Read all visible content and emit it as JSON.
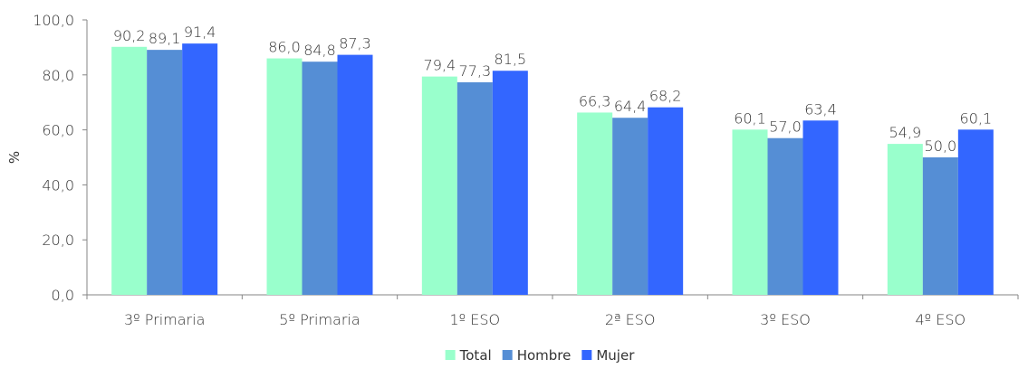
{
  "chart_data": {
    "type": "bar",
    "categories": [
      "3º Primaria",
      "5º Primaria",
      "1º ESO",
      "2ª ESO",
      "3º ESO",
      "4º ESO"
    ],
    "series": [
      {
        "name": "Total",
        "color": "#99ffcc",
        "values": [
          90.2,
          86.0,
          79.4,
          66.3,
          60.1,
          54.9
        ],
        "labels": [
          "90,2",
          "86,0",
          "79,4",
          "66,3",
          "60,1",
          "54,9"
        ]
      },
      {
        "name": "Hombre",
        "color": "#558ed5",
        "values": [
          89.1,
          84.8,
          77.3,
          64.4,
          57.0,
          50.0
        ],
        "labels": [
          "89,1",
          "84,8",
          "77,3",
          "64,4",
          "57,0",
          "50,0"
        ]
      },
      {
        "name": "Mujer",
        "color": "#3366ff",
        "values": [
          91.4,
          87.3,
          81.5,
          68.2,
          63.4,
          60.1
        ],
        "labels": [
          "91,4",
          "87,3",
          "81,5",
          "68,2",
          "63,4",
          "60,1"
        ]
      }
    ],
    "ylabel": "%",
    "xlabel": "",
    "ylim": [
      0,
      100
    ],
    "yticks": [
      0,
      20,
      40,
      60,
      80,
      100
    ],
    "ytick_labels": [
      "0,0",
      "20,0",
      "40,0",
      "60,0",
      "80,0",
      "100,0"
    ],
    "grid": false,
    "legend": "bottom"
  }
}
